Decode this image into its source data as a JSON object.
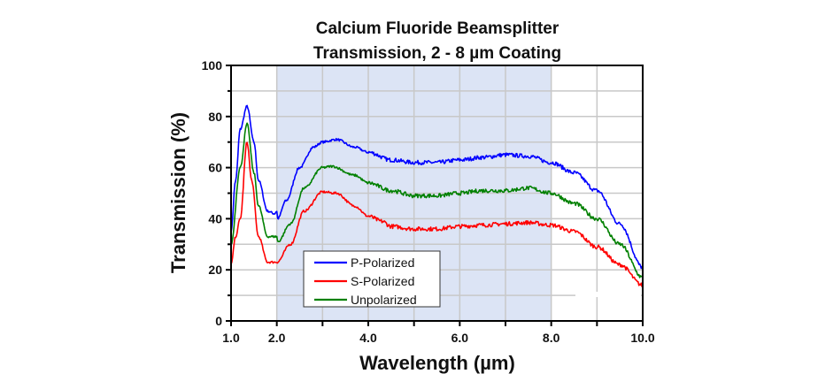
{
  "chart_data": {
    "type": "line",
    "title": [
      "Calcium Fluoride Beamsplitter",
      "Transmission, 2 - 8 µm Coating"
    ],
    "xlabel": "Wavelength (µm)",
    "ylabel": "Transmission (%)",
    "xlim": [
      1,
      10
    ],
    "ylim": [
      0,
      100
    ],
    "xticks": [
      {
        "value": 1,
        "label": "1.0"
      },
      {
        "value": 2,
        "label": "2.0"
      },
      {
        "value": 3,
        "label": ""
      },
      {
        "value": 4,
        "label": "4.0"
      },
      {
        "value": 5,
        "label": ""
      },
      {
        "value": 6,
        "label": "6.0"
      },
      {
        "value": 7,
        "label": ""
      },
      {
        "value": 8,
        "label": "8.0"
      },
      {
        "value": 9,
        "label": ""
      },
      {
        "value": 10,
        "label": "10.0"
      }
    ],
    "yticks": [
      {
        "value": 0,
        "label": "0"
      },
      {
        "value": 20,
        "label": "20"
      },
      {
        "value": 40,
        "label": "40"
      },
      {
        "value": 60,
        "label": "60"
      },
      {
        "value": 80,
        "label": "80"
      },
      {
        "value": 100,
        "label": "100"
      }
    ],
    "grid": true,
    "shaded_region": {
      "x": [
        2,
        8
      ],
      "color": "#dce4f5"
    },
    "legend_placement": "bottom-left",
    "series": [
      {
        "name": "P-Polarized",
        "color": "#0000ff",
        "x": [
          1.0,
          1.1,
          1.2,
          1.35,
          1.5,
          1.6,
          1.8,
          1.95,
          2.0,
          2.02,
          2.2,
          2.5,
          2.8,
          3.0,
          3.3,
          3.7,
          4.0,
          4.5,
          5.0,
          5.5,
          6.0,
          6.5,
          7.0,
          7.5,
          8.0,
          8.5,
          9.0,
          9.5,
          10.0
        ],
        "y": [
          35,
          55,
          75,
          84,
          70,
          55,
          43,
          42,
          43,
          40,
          47,
          60,
          68,
          70,
          71,
          68,
          66,
          63,
          62,
          62,
          63,
          64,
          65,
          64.5,
          62,
          58,
          51,
          38,
          21
        ]
      },
      {
        "name": "S-Polarized",
        "color": "#ff0000",
        "x": [
          1.0,
          1.1,
          1.2,
          1.35,
          1.45,
          1.6,
          1.8,
          2.0,
          2.3,
          2.6,
          3.0,
          3.3,
          3.7,
          4.0,
          4.3,
          4.5,
          5.0,
          5.5,
          6.0,
          6.5,
          7.0,
          7.5,
          8.0,
          8.5,
          9.0,
          9.5,
          10.0
        ],
        "y": [
          22,
          33,
          40,
          70,
          55,
          33,
          23,
          23,
          30,
          43,
          50.5,
          50,
          45,
          41,
          39,
          37,
          36,
          36,
          37,
          37.5,
          38,
          38.5,
          37.5,
          35,
          29,
          22,
          14
        ]
      },
      {
        "name": "Unpolarized",
        "color": "#008000",
        "x": [
          1.0,
          1.2,
          1.35,
          1.5,
          1.6,
          1.8,
          2.0,
          2.02,
          2.3,
          2.6,
          3.0,
          3.2,
          3.7,
          4.0,
          4.5,
          5.0,
          5.5,
          6.0,
          6.5,
          7.0,
          7.5,
          8.0,
          8.5,
          9.0,
          9.5,
          10.0
        ],
        "y": [
          30,
          60,
          77,
          58,
          45,
          33,
          33,
          31,
          38,
          52,
          60,
          60.5,
          57,
          54,
          51,
          49,
          49,
          50,
          51,
          51,
          52,
          50,
          46,
          40,
          30,
          17
        ]
      }
    ]
  }
}
